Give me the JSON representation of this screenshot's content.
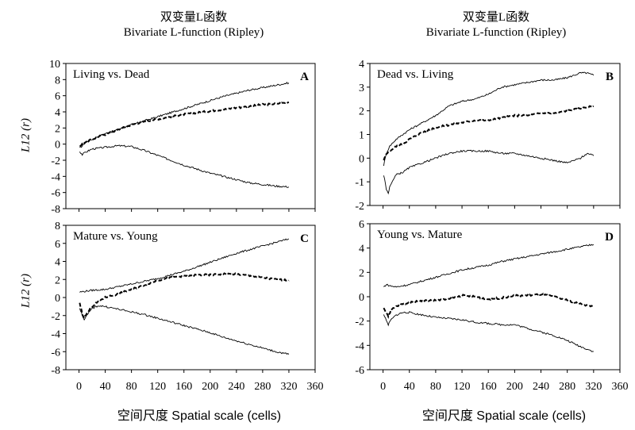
{
  "titles": {
    "left_cn": "双变量L函数",
    "left_en": "Bivariate L-function (Ripley)",
    "right_cn": "双变量L函数",
    "right_en": "Bivariate L-function (Ripley)"
  },
  "axes": {
    "ylabel": "L12 (r)",
    "xlabel": "空间尺度 Spatial scale (cells)",
    "xticks": [
      0,
      40,
      80,
      120,
      160,
      200,
      240,
      280,
      320,
      360
    ]
  },
  "chart_data": [
    {
      "id": "A",
      "type": "line",
      "label": "Living vs. Dead",
      "panel_letter": "A",
      "xlim": [
        -20,
        360
      ],
      "ylim": [
        -8,
        10
      ],
      "yticks": [
        -8,
        -6,
        -4,
        -2,
        0,
        2,
        4,
        6,
        8,
        10
      ],
      "series": [
        {
          "role": "upper-envelope",
          "points": [
            [
              1,
              -0.5
            ],
            [
              5,
              -0.2
            ],
            [
              10,
              0.2
            ],
            [
              20,
              0.6
            ],
            [
              30,
              1.0
            ],
            [
              40,
              1.3
            ],
            [
              60,
              1.8
            ],
            [
              80,
              2.4
            ],
            [
              100,
              2.9
            ],
            [
              120,
              3.4
            ],
            [
              140,
              3.9
            ],
            [
              160,
              4.4
            ],
            [
              180,
              4.9
            ],
            [
              200,
              5.4
            ],
            [
              220,
              5.9
            ],
            [
              240,
              6.3
            ],
            [
              260,
              6.7
            ],
            [
              280,
              7.0
            ],
            [
              300,
              7.3
            ],
            [
              320,
              7.6
            ]
          ]
        },
        {
          "role": "observed",
          "points": [
            [
              1,
              -0.3
            ],
            [
              5,
              0.0
            ],
            [
              10,
              0.3
            ],
            [
              20,
              0.6
            ],
            [
              30,
              0.9
            ],
            [
              40,
              1.2
            ],
            [
              60,
              1.8
            ],
            [
              80,
              2.4
            ],
            [
              100,
              2.8
            ],
            [
              120,
              3.1
            ],
            [
              140,
              3.4
            ],
            [
              160,
              3.7
            ],
            [
              180,
              3.9
            ],
            [
              200,
              4.1
            ],
            [
              220,
              4.3
            ],
            [
              240,
              4.5
            ],
            [
              260,
              4.7
            ],
            [
              280,
              4.9
            ],
            [
              300,
              5.0
            ],
            [
              320,
              5.2
            ]
          ]
        },
        {
          "role": "lower-envelope",
          "points": [
            [
              1,
              -0.9
            ],
            [
              5,
              -1.3
            ],
            [
              10,
              -1.0
            ],
            [
              20,
              -0.6
            ],
            [
              40,
              -0.4
            ],
            [
              60,
              -0.2
            ],
            [
              80,
              -0.3
            ],
            [
              100,
              -0.8
            ],
            [
              120,
              -1.4
            ],
            [
              140,
              -2.0
            ],
            [
              160,
              -2.6
            ],
            [
              180,
              -3.1
            ],
            [
              200,
              -3.6
            ],
            [
              220,
              -4.0
            ],
            [
              240,
              -4.4
            ],
            [
              260,
              -4.8
            ],
            [
              280,
              -5.0
            ],
            [
              300,
              -5.2
            ],
            [
              320,
              -5.3
            ]
          ]
        }
      ]
    },
    {
      "id": "B",
      "type": "line",
      "label": "Dead vs. Living",
      "panel_letter": "B",
      "xlim": [
        -20,
        360
      ],
      "ylim": [
        -2,
        4
      ],
      "yticks": [
        -2,
        -1,
        0,
        1,
        2,
        3,
        4
      ],
      "series": [
        {
          "role": "upper-envelope",
          "points": [
            [
              1,
              -0.3
            ],
            [
              5,
              0.2
            ],
            [
              10,
              0.5
            ],
            [
              20,
              0.8
            ],
            [
              30,
              1.0
            ],
            [
              40,
              1.2
            ],
            [
              60,
              1.5
            ],
            [
              80,
              1.8
            ],
            [
              100,
              2.2
            ],
            [
              120,
              2.4
            ],
            [
              140,
              2.5
            ],
            [
              160,
              2.7
            ],
            [
              180,
              3.0
            ],
            [
              200,
              3.1
            ],
            [
              220,
              3.2
            ],
            [
              240,
              3.3
            ],
            [
              260,
              3.3
            ],
            [
              280,
              3.4
            ],
            [
              300,
              3.6
            ],
            [
              310,
              3.6
            ],
            [
              320,
              3.5
            ]
          ]
        },
        {
          "role": "observed",
          "points": [
            [
              1,
              -0.1
            ],
            [
              5,
              0.2
            ],
            [
              10,
              0.3
            ],
            [
              20,
              0.5
            ],
            [
              30,
              0.6
            ],
            [
              40,
              0.8
            ],
            [
              60,
              1.1
            ],
            [
              80,
              1.3
            ],
            [
              100,
              1.4
            ],
            [
              120,
              1.5
            ],
            [
              140,
              1.6
            ],
            [
              160,
              1.6
            ],
            [
              180,
              1.7
            ],
            [
              200,
              1.8
            ],
            [
              220,
              1.8
            ],
            [
              240,
              1.9
            ],
            [
              260,
              1.9
            ],
            [
              280,
              2.0
            ],
            [
              300,
              2.1
            ],
            [
              320,
              2.2
            ]
          ]
        },
        {
          "role": "lower-envelope",
          "points": [
            [
              1,
              -0.7
            ],
            [
              5,
              -1.3
            ],
            [
              8,
              -1.5
            ],
            [
              10,
              -1.2
            ],
            [
              20,
              -0.7
            ],
            [
              30,
              -0.6
            ],
            [
              40,
              -0.4
            ],
            [
              60,
              -0.2
            ],
            [
              80,
              0.0
            ],
            [
              100,
              0.2
            ],
            [
              120,
              0.3
            ],
            [
              140,
              0.3
            ],
            [
              160,
              0.3
            ],
            [
              180,
              0.2
            ],
            [
              200,
              0.2
            ],
            [
              220,
              0.1
            ],
            [
              240,
              0.0
            ],
            [
              260,
              -0.1
            ],
            [
              280,
              -0.2
            ],
            [
              300,
              0.0
            ],
            [
              310,
              0.2
            ],
            [
              320,
              0.1
            ]
          ]
        }
      ]
    },
    {
      "id": "C",
      "type": "line",
      "label": "Mature vs. Young",
      "panel_letter": "C",
      "xlim": [
        -20,
        360
      ],
      "ylim": [
        -8,
        8
      ],
      "yticks": [
        -8,
        -6,
        -4,
        -2,
        0,
        2,
        4,
        6,
        8
      ],
      "series": [
        {
          "role": "upper-envelope",
          "points": [
            [
              1,
              0.6
            ],
            [
              10,
              0.7
            ],
            [
              20,
              0.8
            ],
            [
              40,
              0.9
            ],
            [
              60,
              1.2
            ],
            [
              80,
              1.5
            ],
            [
              100,
              1.8
            ],
            [
              120,
              2.1
            ],
            [
              140,
              2.5
            ],
            [
              160,
              2.9
            ],
            [
              180,
              3.4
            ],
            [
              200,
              3.9
            ],
            [
              220,
              4.4
            ],
            [
              240,
              4.9
            ],
            [
              260,
              5.3
            ],
            [
              280,
              5.7
            ],
            [
              300,
              6.1
            ],
            [
              320,
              6.5
            ]
          ]
        },
        {
          "role": "observed",
          "points": [
            [
              1,
              -0.6
            ],
            [
              5,
              -1.8
            ],
            [
              8,
              -2.2
            ],
            [
              12,
              -1.8
            ],
            [
              20,
              -1.0
            ],
            [
              30,
              -0.4
            ],
            [
              40,
              0.0
            ],
            [
              60,
              0.4
            ],
            [
              80,
              0.9
            ],
            [
              100,
              1.4
            ],
            [
              120,
              1.9
            ],
            [
              140,
              2.2
            ],
            [
              160,
              2.4
            ],
            [
              180,
              2.5
            ],
            [
              200,
              2.5
            ],
            [
              220,
              2.6
            ],
            [
              240,
              2.6
            ],
            [
              260,
              2.4
            ],
            [
              280,
              2.2
            ],
            [
              300,
              2.0
            ],
            [
              320,
              1.9
            ]
          ]
        },
        {
          "role": "lower-envelope",
          "points": [
            [
              1,
              -1.2
            ],
            [
              5,
              -2.0
            ],
            [
              8,
              -2.4
            ],
            [
              12,
              -2.0
            ],
            [
              20,
              -1.2
            ],
            [
              30,
              -0.9
            ],
            [
              40,
              -1.0
            ],
            [
              60,
              -1.3
            ],
            [
              80,
              -1.6
            ],
            [
              100,
              -1.9
            ],
            [
              120,
              -2.3
            ],
            [
              140,
              -2.7
            ],
            [
              160,
              -3.1
            ],
            [
              180,
              -3.5
            ],
            [
              200,
              -3.9
            ],
            [
              220,
              -4.4
            ],
            [
              240,
              -4.8
            ],
            [
              260,
              -5.2
            ],
            [
              280,
              -5.6
            ],
            [
              300,
              -6.0
            ],
            [
              320,
              -6.3
            ]
          ]
        }
      ]
    },
    {
      "id": "D",
      "type": "line",
      "label": "Young vs. Mature",
      "panel_letter": "D",
      "xlim": [
        -20,
        360
      ],
      "ylim": [
        -6,
        6
      ],
      "yticks": [
        -6,
        -4,
        -2,
        0,
        2,
        4,
        6
      ],
      "series": [
        {
          "role": "upper-envelope",
          "points": [
            [
              1,
              0.8
            ],
            [
              5,
              1.0
            ],
            [
              10,
              0.9
            ],
            [
              20,
              0.8
            ],
            [
              40,
              1.0
            ],
            [
              60,
              1.3
            ],
            [
              80,
              1.6
            ],
            [
              100,
              1.9
            ],
            [
              120,
              2.2
            ],
            [
              140,
              2.4
            ],
            [
              160,
              2.6
            ],
            [
              180,
              2.9
            ],
            [
              200,
              3.1
            ],
            [
              220,
              3.3
            ],
            [
              240,
              3.5
            ],
            [
              260,
              3.7
            ],
            [
              280,
              3.9
            ],
            [
              300,
              4.1
            ],
            [
              320,
              4.3
            ]
          ]
        },
        {
          "role": "observed",
          "points": [
            [
              1,
              -0.9
            ],
            [
              5,
              -1.3
            ],
            [
              8,
              -1.6
            ],
            [
              12,
              -1.1
            ],
            [
              20,
              -0.8
            ],
            [
              30,
              -0.6
            ],
            [
              40,
              -0.5
            ],
            [
              60,
              -0.3
            ],
            [
              80,
              -0.3
            ],
            [
              100,
              -0.2
            ],
            [
              120,
              0.1
            ],
            [
              140,
              0.0
            ],
            [
              160,
              -0.2
            ],
            [
              180,
              -0.1
            ],
            [
              200,
              0.1
            ],
            [
              220,
              0.1
            ],
            [
              240,
              0.2
            ],
            [
              260,
              0.0
            ],
            [
              280,
              -0.3
            ],
            [
              300,
              -0.6
            ],
            [
              320,
              -0.8
            ]
          ]
        },
        {
          "role": "lower-envelope",
          "points": [
            [
              1,
              -1.4
            ],
            [
              5,
              -2.0
            ],
            [
              8,
              -2.3
            ],
            [
              12,
              -1.9
            ],
            [
              20,
              -1.5
            ],
            [
              30,
              -1.3
            ],
            [
              40,
              -1.3
            ],
            [
              60,
              -1.5
            ],
            [
              80,
              -1.7
            ],
            [
              100,
              -1.8
            ],
            [
              120,
              -1.9
            ],
            [
              140,
              -2.1
            ],
            [
              160,
              -2.2
            ],
            [
              180,
              -2.3
            ],
            [
              200,
              -2.3
            ],
            [
              220,
              -2.6
            ],
            [
              240,
              -2.9
            ],
            [
              260,
              -3.2
            ],
            [
              280,
              -3.6
            ],
            [
              300,
              -4.1
            ],
            [
              320,
              -4.5
            ]
          ]
        }
      ]
    }
  ]
}
